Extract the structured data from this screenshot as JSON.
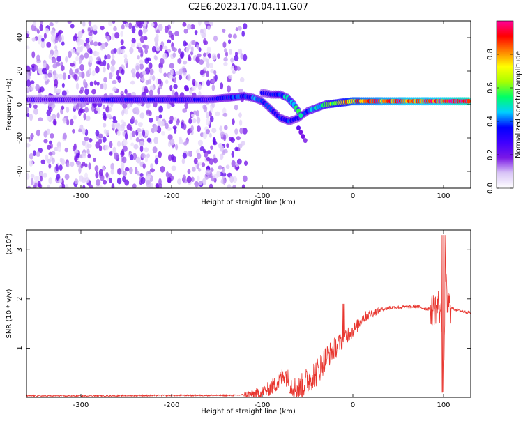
{
  "chart_data": [
    {
      "type": "heatmap",
      "title": "C2E6.2023.170.04.11.G07",
      "xlabel": "Height of straight line (km)",
      "ylabel": "Frequency (Hz)",
      "xlim": [
        -360,
        130
      ],
      "ylim": [
        -50,
        50
      ],
      "xticks": [
        -300,
        -200,
        -100,
        0,
        100
      ],
      "yticks": [
        -40,
        -20,
        0,
        20,
        40
      ],
      "colorbar": {
        "label": "Normalized spectral amplitude",
        "range": [
          0,
          1
        ],
        "ticks": [
          "0.0",
          "0.2",
          "0.4",
          "0.6",
          "0.8"
        ],
        "colormap": [
          "#ffffff",
          "#d9c5f7",
          "#7a18e6",
          "#3f00ff",
          "#0000ff",
          "#00d0ff",
          "#00ff66",
          "#a8ff00",
          "#ffff00",
          "#ff8000",
          "#ff0000",
          "#ff0099"
        ]
      },
      "noise_region": {
        "x": [
          -360,
          -118
        ],
        "freq": [
          -50,
          50
        ],
        "amplitude": 0.2
      },
      "ridge": [
        {
          "x": -360,
          "freq": 3,
          "amp": 0.22
        },
        {
          "x": -320,
          "freq": 3,
          "amp": 0.24
        },
        {
          "x": -280,
          "freq": 3,
          "amp": 0.27
        },
        {
          "x": -250,
          "freq": 3,
          "amp": 0.33
        },
        {
          "x": -220,
          "freq": 3,
          "amp": 0.31
        },
        {
          "x": -190,
          "freq": 3,
          "amp": 0.33
        },
        {
          "x": -160,
          "freq": 3,
          "amp": 0.3
        },
        {
          "x": -140,
          "freq": 4,
          "amp": 0.36
        },
        {
          "x": -120,
          "freq": 5,
          "amp": 0.38
        },
        {
          "x": -110,
          "freq": 4,
          "amp": 0.4
        },
        {
          "x": -100,
          "freq": 2,
          "amp": 0.38
        },
        {
          "x": -90,
          "freq": -3,
          "amp": 0.36
        },
        {
          "x": -80,
          "freq": -8,
          "amp": 0.34
        },
        {
          "x": -70,
          "freq": -10,
          "amp": 0.36
        },
        {
          "x": -60,
          "freq": -8,
          "amp": 0.32
        },
        {
          "x": -50,
          "freq": -4,
          "amp": 0.38
        },
        {
          "x": -40,
          "freq": -2,
          "amp": 0.45
        },
        {
          "x": -30,
          "freq": 0,
          "amp": 0.55
        },
        {
          "x": -15,
          "freq": 1,
          "amp": 0.68
        },
        {
          "x": 0,
          "freq": 2,
          "amp": 0.8
        },
        {
          "x": 30,
          "freq": 2,
          "amp": 0.86
        },
        {
          "x": 60,
          "freq": 2,
          "amp": 0.9
        },
        {
          "x": 90,
          "freq": 2,
          "amp": 0.9
        },
        {
          "x": 110,
          "freq": 2,
          "amp": 0.95
        },
        {
          "x": 130,
          "freq": 2,
          "amp": 0.98
        }
      ],
      "branch": [
        {
          "x": -100,
          "freq": 7,
          "amp": 0.3
        },
        {
          "x": -90,
          "freq": 6,
          "amp": 0.32
        },
        {
          "x": -80,
          "freq": 6,
          "amp": 0.4
        },
        {
          "x": -72,
          "freq": 4,
          "amp": 0.45
        },
        {
          "x": -65,
          "freq": 0,
          "amp": 0.5
        },
        {
          "x": -60,
          "freq": -4,
          "amp": 0.5
        },
        {
          "x": -55,
          "freq": -9,
          "amp": 0.42
        }
      ],
      "tail": [
        {
          "x": -60,
          "freq": -14,
          "amp": 0.2
        },
        {
          "x": -55,
          "freq": -19,
          "amp": 0.18
        },
        {
          "x": -50,
          "freq": -24,
          "amp": 0.15
        }
      ]
    },
    {
      "type": "line",
      "xlabel": "Height of straight line (km)",
      "ylabel": "SNR (10 * v/v)",
      "ymultiplier": "(x10",
      "ymultiplier_exp": "4",
      "ymultiplier_close": ")",
      "xlim": [
        -360,
        130
      ],
      "ylim": [
        0,
        3.4
      ],
      "xticks": [
        -300,
        -200,
        -100,
        0,
        100
      ],
      "yticks": [
        1,
        2,
        3
      ],
      "series": [
        {
          "color": "#e8362f",
          "x": [
            -360,
            -300,
            -200,
            -130,
            -110,
            -100,
            -90,
            -80,
            -75,
            -70,
            -65,
            -60,
            -55,
            -50,
            -45,
            -40,
            -35,
            -30,
            -25,
            -20,
            -15,
            -10,
            -5,
            0,
            5,
            10,
            20,
            30,
            40,
            50,
            60,
            70,
            80,
            90,
            95,
            98,
            100,
            102,
            104,
            110,
            120,
            130
          ],
          "y": [
            0.03,
            0.03,
            0.04,
            0.04,
            0.07,
            0.1,
            0.2,
            0.35,
            0.5,
            0.3,
            0.2,
            0.15,
            0.25,
            0.35,
            0.45,
            0.5,
            0.65,
            0.8,
            0.9,
            1.0,
            1.1,
            1.2,
            1.3,
            1.35,
            1.45,
            1.6,
            1.7,
            1.78,
            1.82,
            1.83,
            1.83,
            1.85,
            1.8,
            1.8,
            1.9,
            1.5,
            0.1,
            2.5,
            1.9,
            1.8,
            1.75,
            1.72
          ]
        }
      ]
    }
  ]
}
